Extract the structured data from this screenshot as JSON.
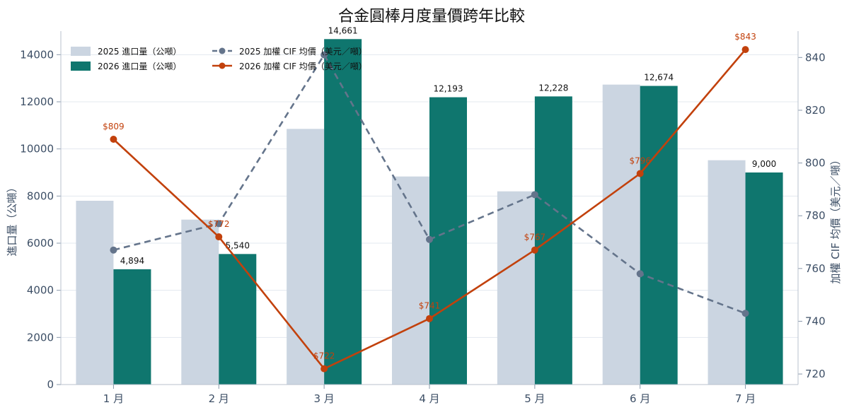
{
  "chart_data": {
    "type": "bar",
    "title": "合金圓棒月度量價跨年比較",
    "categories": [
      "1 月",
      "2 月",
      "3 月",
      "4 月",
      "5 月",
      "6 月",
      "7 月"
    ],
    "ylabel_left": "進口量（公噸）",
    "ylabel_right": "加權 CIF 均價（美元／噸）",
    "ylim_left": [
      0,
      15000
    ],
    "ylim_right": [
      716,
      850
    ],
    "yticks_left": [
      "0",
      "2000",
      "4000",
      "6000",
      "8000",
      "10000",
      "12000",
      "14000"
    ],
    "yticks_right": [
      "720",
      "740",
      "760",
      "780",
      "800",
      "820",
      "840"
    ],
    "grid": true,
    "legend_position": "top-left",
    "bar_series": [
      {
        "name": "2025 進口量（公噸）",
        "color": "#cbd5e1",
        "values": [
          7800,
          7000,
          10850,
          8830,
          8200,
          12730,
          9520
        ],
        "labels": [
          "",
          "",
          "",
          "",
          "",
          "",
          ""
        ]
      },
      {
        "name": "2026 進口量（公噸）",
        "color": "#0f766e",
        "values": [
          4894,
          5540,
          14661,
          12193,
          12228,
          12674,
          9000
        ],
        "labels": [
          "4,894",
          "5,540",
          "14,661",
          "12,193",
          "12,228",
          "12,674",
          "9,000"
        ]
      }
    ],
    "line_series": [
      {
        "name": "2025 加權 CIF 均價（美元／噸）",
        "color": "#64748b",
        "dashed": true,
        "values": [
          767,
          777,
          841,
          771,
          788,
          758,
          743
        ],
        "labels": [
          "",
          "",
          "",
          "",
          "",
          "",
          ""
        ]
      },
      {
        "name": "2026 加權 CIF 均價（美元／噸）",
        "color": "#c2410c",
        "dashed": false,
        "values": [
          809,
          772,
          722,
          741,
          767,
          796,
          843
        ],
        "labels": [
          "$809",
          "$772",
          "$722",
          "$741",
          "$767",
          "$796",
          "$843"
        ]
      }
    ]
  }
}
